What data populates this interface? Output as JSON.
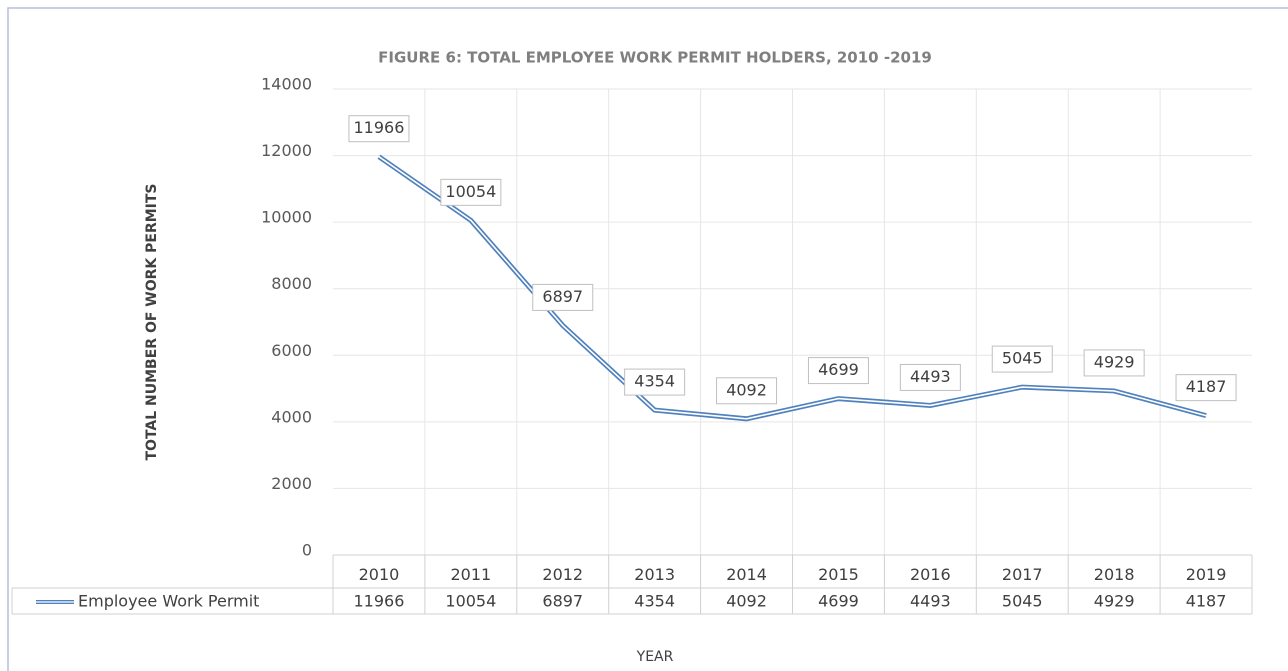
{
  "chart_data": {
    "type": "line",
    "title": "FIGURE 6: TOTAL EMPLOYEE WORK PERMIT HOLDERS, 2010 -2019",
    "x_label": "YEAR",
    "y_label": "TOTAL NUMBER OF WORK PERMITS",
    "categories": [
      "2010",
      "2011",
      "2012",
      "2013",
      "2014",
      "2015",
      "2016",
      "2017",
      "2018",
      "2019"
    ],
    "series": [
      {
        "name": "Employee Work Permit",
        "color": "#4f81bd",
        "values": [
          11966,
          10054,
          6897,
          4354,
          4092,
          4699,
          4493,
          5045,
          4929,
          4187
        ]
      }
    ],
    "ylim": [
      0,
      14000
    ],
    "yticks": [
      0,
      2000,
      4000,
      6000,
      8000,
      10000,
      12000,
      14000
    ],
    "grid": true
  }
}
